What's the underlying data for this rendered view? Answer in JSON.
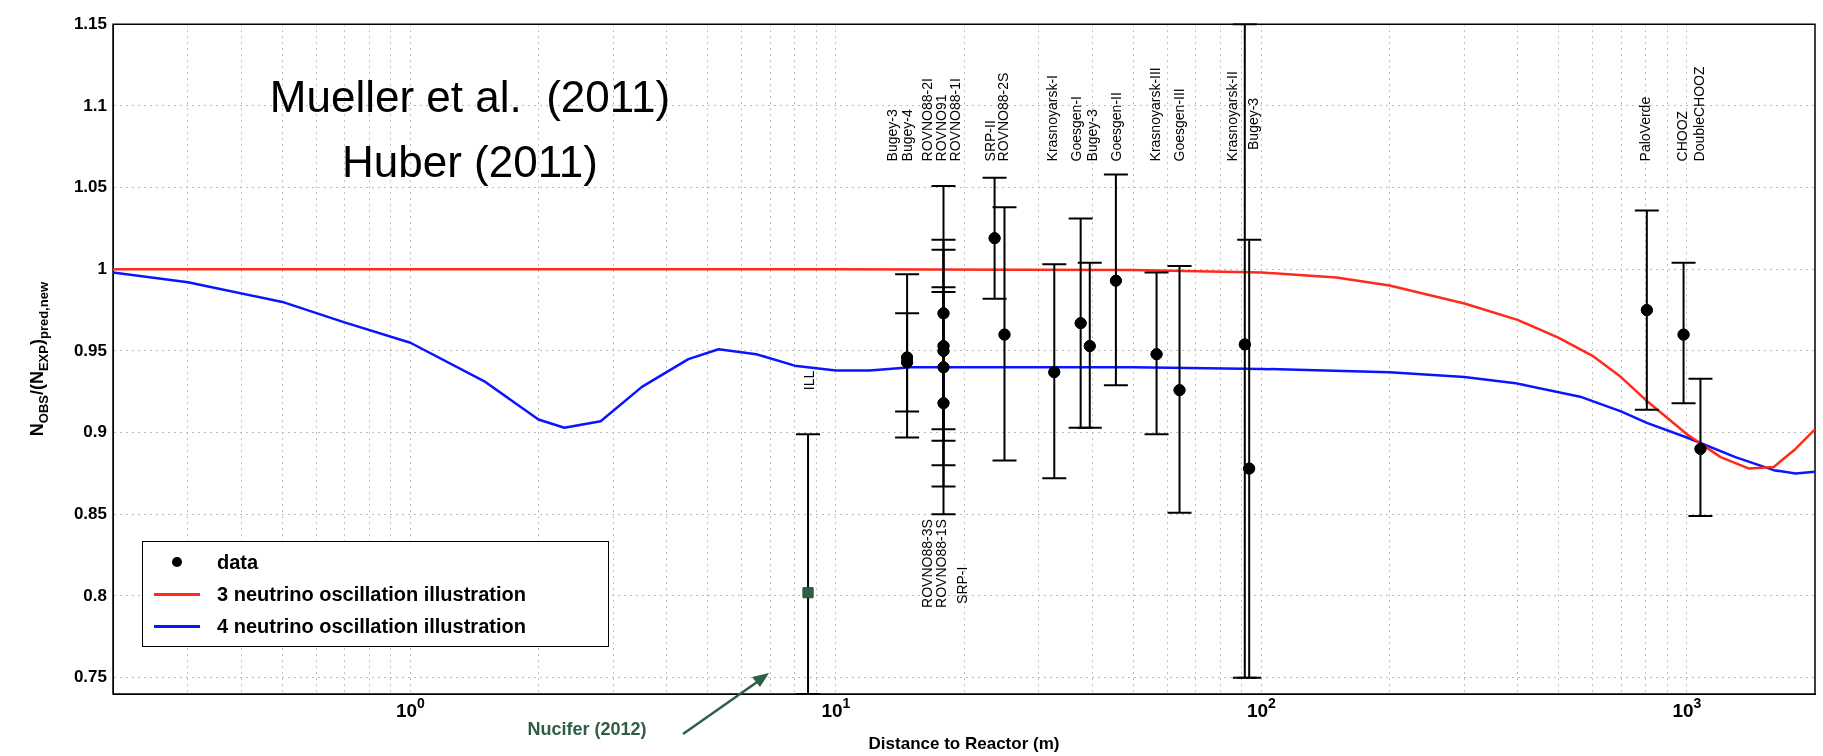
{
  "chart_data": {
    "type": "scatter",
    "xlabel": "Distance to Reactor (m)",
    "ylabel": "N$_{OBS}$/(N$_{EXP}$)$_{pred,new}$",
    "log": "x",
    "grid": true,
    "legend": "bottom left",
    "xlim": [
      0.2,
      2000
    ],
    "xticks": [
      {
        "value": 0.3,
        "label": null
      },
      {
        "value": 0.4,
        "label": null
      },
      {
        "value": 0.5,
        "label": null
      },
      {
        "value": 0.6,
        "label": null
      },
      {
        "value": 0.7,
        "label": null
      },
      {
        "value": 0.8,
        "label": null
      },
      {
        "value": 0.9,
        "label": null
      },
      {
        "value": 1,
        "label": "10$^{0}$"
      },
      {
        "value": 2,
        "label": null
      },
      {
        "value": 3,
        "label": null
      },
      {
        "value": 4,
        "label": null
      },
      {
        "value": 5,
        "label": null
      },
      {
        "value": 6,
        "label": null
      },
      {
        "value": 7,
        "label": null
      },
      {
        "value": 8,
        "label": null
      },
      {
        "value": 9,
        "label": null
      },
      {
        "value": 10,
        "label": "10$^{1}$"
      },
      {
        "value": 20,
        "label": null
      },
      {
        "value": 30,
        "label": null
      },
      {
        "value": 40,
        "label": null
      },
      {
        "value": 50,
        "label": null
      },
      {
        "value": 60,
        "label": null
      },
      {
        "value": 70,
        "label": null
      },
      {
        "value": 80,
        "label": null
      },
      {
        "value": 90,
        "label": null
      },
      {
        "value": 100,
        "label": "10$^{2}$"
      },
      {
        "value": 200,
        "label": null
      },
      {
        "value": 300,
        "label": null
      },
      {
        "value": 400,
        "label": null
      },
      {
        "value": 500,
        "label": null
      },
      {
        "value": 600,
        "label": null
      },
      {
        "value": 700,
        "label": null
      },
      {
        "value": 800,
        "label": null
      },
      {
        "value": 900,
        "label": null
      },
      {
        "value": 1000,
        "label": "10$^{3}$"
      }
    ],
    "ylim": [
      0.74,
      1.15
    ],
    "yticks": [
      0.75,
      0.8,
      0.85,
      0.9,
      0.95,
      1,
      1.05,
      1.1,
      1.15
    ],
    "series": [
      {
        "name": "data",
        "color": "#000000",
        "marker": "circle",
        "x": [
          14.7,
          14.7,
          17.9,
          17.9,
          17.9,
          17.9,
          17.9,
          23.6,
          24.9,
          32.6,
          37.6,
          39.5,
          45.5,
          56.7,
          64.2,
          91.4,
          93.6,
          805,
          982,
          1076
        ],
        "values": [
          0.943,
          0.946,
          0.973,
          0.953,
          0.95,
          0.94,
          0.918,
          1.019,
          0.96,
          0.937,
          0.967,
          0.953,
          0.993,
          0.948,
          0.926,
          0.954,
          0.878,
          0.975,
          0.96,
          0.89
        ],
        "errors": [
          [
            0.913,
            0.973
          ],
          [
            0.897,
            0.997
          ],
          [
            0.895,
            1.051
          ],
          [
            0.902,
            1.012
          ],
          [
            0.88,
            1.018
          ],
          [
            0.867,
            0.989
          ],
          [
            0.85,
            0.986
          ],
          [
            0.982,
            1.056
          ],
          [
            0.883,
            1.038
          ],
          [
            0.872,
            1.003
          ],
          [
            0.903,
            1.031
          ],
          [
            0.903,
            1.004
          ],
          [
            0.929,
            1.058
          ],
          [
            0.899,
            0.998
          ],
          [
            0.851,
            1.002
          ],
          [
            0.75,
            1.15
          ],
          [
            0.75,
            1.018
          ],
          [
            0.914,
            1.036
          ],
          [
            0.918,
            1.004
          ],
          [
            0.849,
            0.933
          ]
        ]
      },
      {
        "color": "#2e5e46",
        "marker": "square",
        "x": [
          8.6
        ],
        "values": [
          0.802
        ],
        "errors": [
          [
            0.74,
            0.899
          ]
        ]
      },
      {
        "type": "line",
        "name": "3 neutrino oscillation illustration",
        "color": "#ff2a1a",
        "marker": "none",
        "x": [
          0.2,
          1,
          10,
          50,
          100,
          150,
          200,
          300,
          400,
          500,
          600,
          700,
          800,
          900,
          1000,
          1200,
          1400,
          1600,
          1800,
          2000
        ],
        "values": [
          1,
          1,
          1,
          0.9995,
          0.998,
          0.995,
          0.99,
          0.979,
          0.969,
          0.958,
          0.947,
          0.934,
          0.92,
          0.909,
          0.899,
          0.885,
          0.878,
          0.879,
          0.89,
          0.902
        ]
      },
      {
        "type": "line",
        "name": "4 neutrino oscillation illustration",
        "color": "#0a14ff",
        "marker": "none",
        "x": [
          0.2,
          0.3,
          0.5,
          0.7,
          1,
          1.5,
          2,
          2.3,
          2.8,
          3.5,
          4.5,
          5.3,
          6.5,
          8,
          10,
          12,
          15,
          20,
          50,
          100,
          200,
          300,
          400,
          561,
          700,
          805,
          1000,
          1300,
          1600,
          1800,
          2000
        ],
        "values": [
          0.998,
          0.992,
          0.98,
          0.9675,
          0.955,
          0.931,
          0.908,
          0.903,
          0.907,
          0.928,
          0.945,
          0.951,
          0.948,
          0.941,
          0.938,
          0.938,
          0.94,
          0.94,
          0.94,
          0.939,
          0.937,
          0.934,
          0.93,
          0.922,
          0.913,
          0.906,
          0.897,
          0.885,
          0.877,
          0.875,
          0.876
        ]
      }
    ],
    "annotations": [
      "Mueller et al.  (2011)",
      "Huber (2011)",
      "Nucifer (2012)",
      "ILL",
      "Bugey-3",
      "Bugey-4",
      "ROVNO88-2I",
      "ROVNO91",
      "ROVNO88-1I",
      "SRP-II",
      "ROVNO88-2S",
      "Krasnoyarsk-I",
      "Goesgen-I",
      "Bugey-3",
      "Goesgen-II",
      "Krasnoyarsk-III",
      "Goesgen-III",
      "Krasnoyarsk-II",
      "Bugey-3",
      "PaloVerde",
      "CHOOZ",
      "DoubleCHOOZ",
      "ROVNO88-3S",
      "ROVNO88-1S",
      "SRP-I"
    ]
  }
}
